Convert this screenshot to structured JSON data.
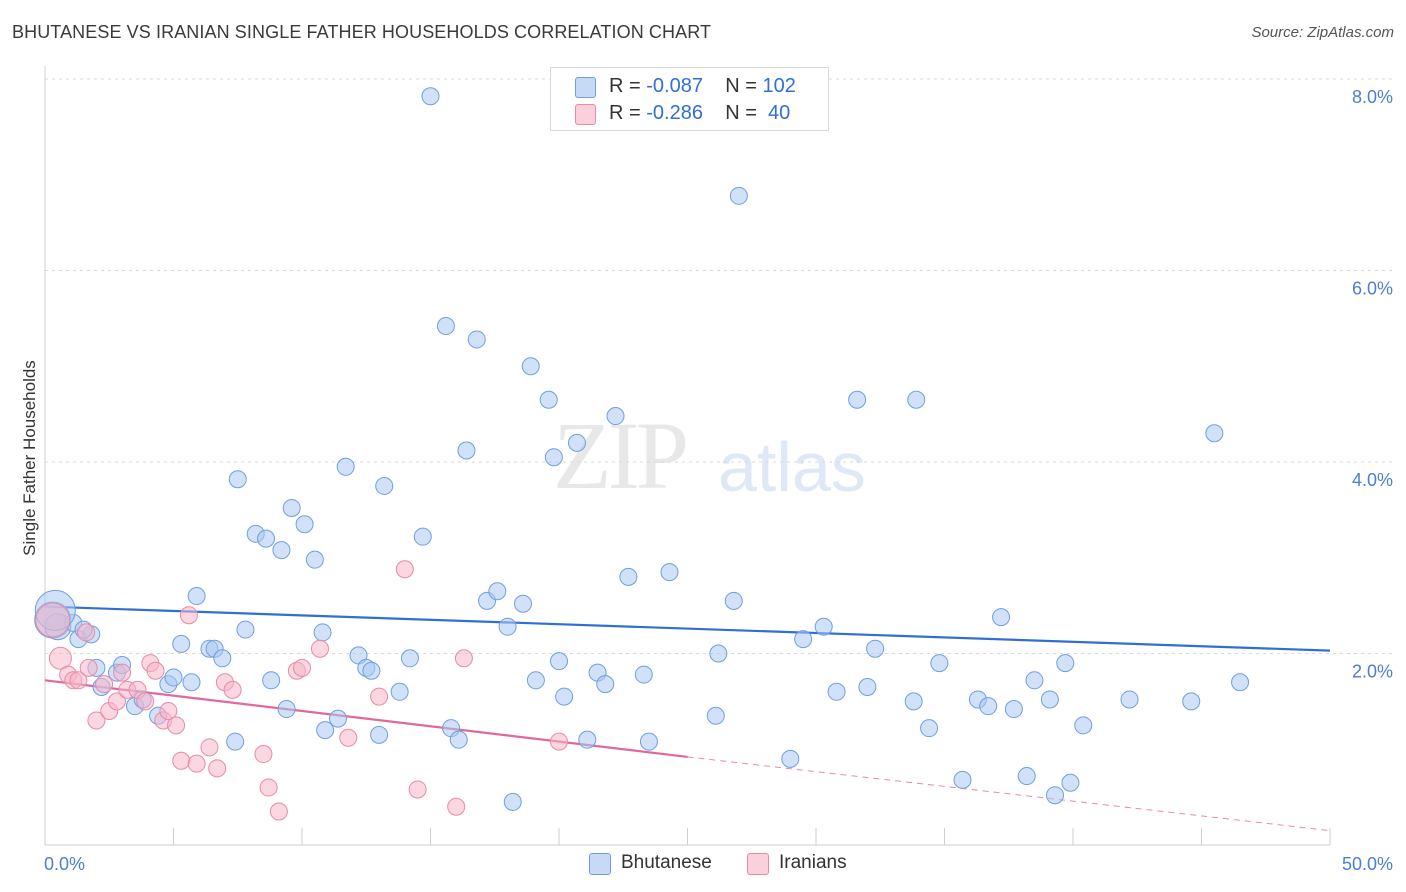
{
  "title": "BHUTANESE VS IRANIAN SINGLE FATHER HOUSEHOLDS CORRELATION CHART",
  "source": "Source: ZipAtlas.com",
  "watermark": {
    "zip": "ZIP",
    "atlas": "atlas"
  },
  "legend_top": [
    {
      "r_label": "R = ",
      "r_value": "-0.087",
      "n_label": "N = ",
      "n_value": "102",
      "color": "#a9c8f2"
    },
    {
      "r_label": "R = ",
      "r_value": "-0.286",
      "n_label": "N = ",
      "n_value": " 40",
      "color": "#f5b6c9"
    }
  ],
  "legend_bottom": [
    {
      "label": "Bhutanese",
      "color": "#a9c8f2"
    },
    {
      "label": "Iranians",
      "color": "#f5b6c9"
    }
  ],
  "chart_data": {
    "type": "scatter",
    "title": "BHUTANESE VS IRANIAN SINGLE FATHER HOUSEHOLDS CORRELATION CHART",
    "ylabel": "Single Father Households",
    "xlabel": "",
    "xlim": [
      0,
      50
    ],
    "ylim": [
      0,
      8.3
    ],
    "x_tick_labels": [
      "0.0%",
      "50.0%"
    ],
    "y_ticks": [
      2,
      4,
      6,
      8
    ],
    "y_tick_labels": [
      "2.0%",
      "4.0%",
      "6.0%",
      "8.0%"
    ],
    "grid": true,
    "series": [
      {
        "name": "Bhutanese",
        "color": "#a9c8f2",
        "stroke": "#6f9fe0",
        "trend": {
          "x": [
            0,
            50
          ],
          "y": [
            2.49,
            2.03
          ],
          "color": "#2f6fd6"
        },
        "points": [
          [
            0.3,
            2.35
          ],
          [
            0.5,
            2.28
          ],
          [
            1.1,
            2.32
          ],
          [
            1.3,
            2.15
          ],
          [
            1.8,
            2.2
          ],
          [
            2.0,
            1.85
          ],
          [
            2.2,
            1.65
          ],
          [
            2.8,
            1.8
          ],
          [
            3.0,
            1.88
          ],
          [
            3.5,
            1.45
          ],
          [
            3.8,
            1.52
          ],
          [
            4.4,
            1.35
          ],
          [
            4.8,
            1.68
          ],
          [
            5.0,
            1.75
          ],
          [
            5.3,
            2.1
          ],
          [
            5.7,
            1.7
          ],
          [
            5.9,
            2.6
          ],
          [
            6.4,
            2.05
          ],
          [
            6.6,
            2.05
          ],
          [
            6.9,
            1.95
          ],
          [
            7.4,
            1.08
          ],
          [
            7.5,
            3.82
          ],
          [
            7.8,
            2.25
          ],
          [
            8.2,
            3.25
          ],
          [
            8.6,
            3.2
          ],
          [
            8.8,
            1.72
          ],
          [
            9.2,
            3.08
          ],
          [
            9.4,
            1.42
          ],
          [
            9.6,
            3.52
          ],
          [
            10.1,
            3.35
          ],
          [
            10.5,
            2.98
          ],
          [
            10.8,
            2.22
          ],
          [
            10.9,
            1.2
          ],
          [
            11.4,
            1.32
          ],
          [
            11.7,
            3.95
          ],
          [
            12.2,
            1.98
          ],
          [
            12.5,
            1.85
          ],
          [
            12.7,
            1.82
          ],
          [
            13.0,
            1.15
          ],
          [
            13.2,
            3.75
          ],
          [
            13.8,
            1.6
          ],
          [
            14.2,
            1.95
          ],
          [
            14.7,
            3.22
          ],
          [
            15.0,
            7.82
          ],
          [
            15.6,
            5.42
          ],
          [
            15.8,
            1.22
          ],
          [
            16.1,
            1.1
          ],
          [
            16.4,
            4.12
          ],
          [
            16.8,
            5.28
          ],
          [
            17.2,
            2.55
          ],
          [
            17.6,
            2.65
          ],
          [
            18.0,
            2.28
          ],
          [
            18.2,
            0.45
          ],
          [
            18.6,
            2.52
          ],
          [
            18.9,
            5.0
          ],
          [
            19.1,
            1.72
          ],
          [
            19.6,
            4.65
          ],
          [
            19.8,
            4.05
          ],
          [
            20.0,
            1.92
          ],
          [
            20.2,
            1.55
          ],
          [
            20.7,
            4.2
          ],
          [
            21.1,
            1.1
          ],
          [
            21.5,
            1.8
          ],
          [
            21.8,
            1.68
          ],
          [
            22.2,
            4.48
          ],
          [
            22.7,
            2.8
          ],
          [
            23.3,
            1.78
          ],
          [
            23.5,
            1.08
          ],
          [
            24.3,
            2.85
          ],
          [
            26.1,
            1.35
          ],
          [
            26.2,
            2.0
          ],
          [
            26.8,
            2.55
          ],
          [
            27.0,
            6.78
          ],
          [
            29.0,
            0.9
          ],
          [
            29.5,
            2.15
          ],
          [
            30.3,
            2.28
          ],
          [
            30.8,
            1.6
          ],
          [
            31.6,
            4.65
          ],
          [
            32.0,
            1.65
          ],
          [
            32.3,
            2.05
          ],
          [
            33.8,
            1.5
          ],
          [
            33.9,
            4.65
          ],
          [
            34.4,
            1.22
          ],
          [
            34.8,
            1.9
          ],
          [
            35.7,
            0.68
          ],
          [
            36.3,
            1.52
          ],
          [
            36.7,
            1.45
          ],
          [
            37.2,
            2.38
          ],
          [
            37.7,
            1.42
          ],
          [
            38.2,
            0.72
          ],
          [
            38.5,
            1.72
          ],
          [
            39.1,
            1.52
          ],
          [
            39.3,
            0.52
          ],
          [
            39.7,
            1.9
          ],
          [
            39.9,
            0.65
          ],
          [
            40.4,
            1.25
          ],
          [
            42.2,
            1.52
          ],
          [
            44.6,
            1.5
          ],
          [
            45.5,
            4.3
          ],
          [
            46.5,
            1.7
          ],
          [
            0.4,
            2.45
          ],
          [
            1.5,
            2.25
          ]
        ],
        "sizes": {
          "0": 18,
          "1": 13,
          "100": 20
        }
      },
      {
        "name": "Iranians",
        "color": "#f5b6c9",
        "stroke": "#e88aa8",
        "trend": {
          "x": [
            0,
            25
          ],
          "y": [
            1.72,
            0.92
          ],
          "color": "#e0689a"
        },
        "trend_dashed": {
          "x": [
            25,
            50
          ],
          "y": [
            0.92,
            0.15
          ],
          "color": "#e889aa"
        },
        "points": [
          [
            0.3,
            2.35
          ],
          [
            0.6,
            1.95
          ],
          [
            0.9,
            1.78
          ],
          [
            1.1,
            1.72
          ],
          [
            1.3,
            1.72
          ],
          [
            1.6,
            2.22
          ],
          [
            1.7,
            1.85
          ],
          [
            2.0,
            1.3
          ],
          [
            2.3,
            1.68
          ],
          [
            2.5,
            1.4
          ],
          [
            2.8,
            1.5
          ],
          [
            3.0,
            1.8
          ],
          [
            3.2,
            1.62
          ],
          [
            3.6,
            1.62
          ],
          [
            3.9,
            1.5
          ],
          [
            4.1,
            1.9
          ],
          [
            4.3,
            1.82
          ],
          [
            4.6,
            1.3
          ],
          [
            4.8,
            1.4
          ],
          [
            5.1,
            1.25
          ],
          [
            5.3,
            0.88
          ],
          [
            5.6,
            2.4
          ],
          [
            5.9,
            0.85
          ],
          [
            6.4,
            1.02
          ],
          [
            6.7,
            0.8
          ],
          [
            7.0,
            1.7
          ],
          [
            7.3,
            1.62
          ],
          [
            8.5,
            0.95
          ],
          [
            8.7,
            0.6
          ],
          [
            9.1,
            0.35
          ],
          [
            9.8,
            1.82
          ],
          [
            10.0,
            1.85
          ],
          [
            10.7,
            2.05
          ],
          [
            11.8,
            1.12
          ],
          [
            13.0,
            1.55
          ],
          [
            14.0,
            2.88
          ],
          [
            14.5,
            0.58
          ],
          [
            16.0,
            0.4
          ],
          [
            16.3,
            1.95
          ],
          [
            20.0,
            1.08
          ]
        ],
        "sizes": {
          "0": 17,
          "1": 11
        }
      }
    ]
  }
}
